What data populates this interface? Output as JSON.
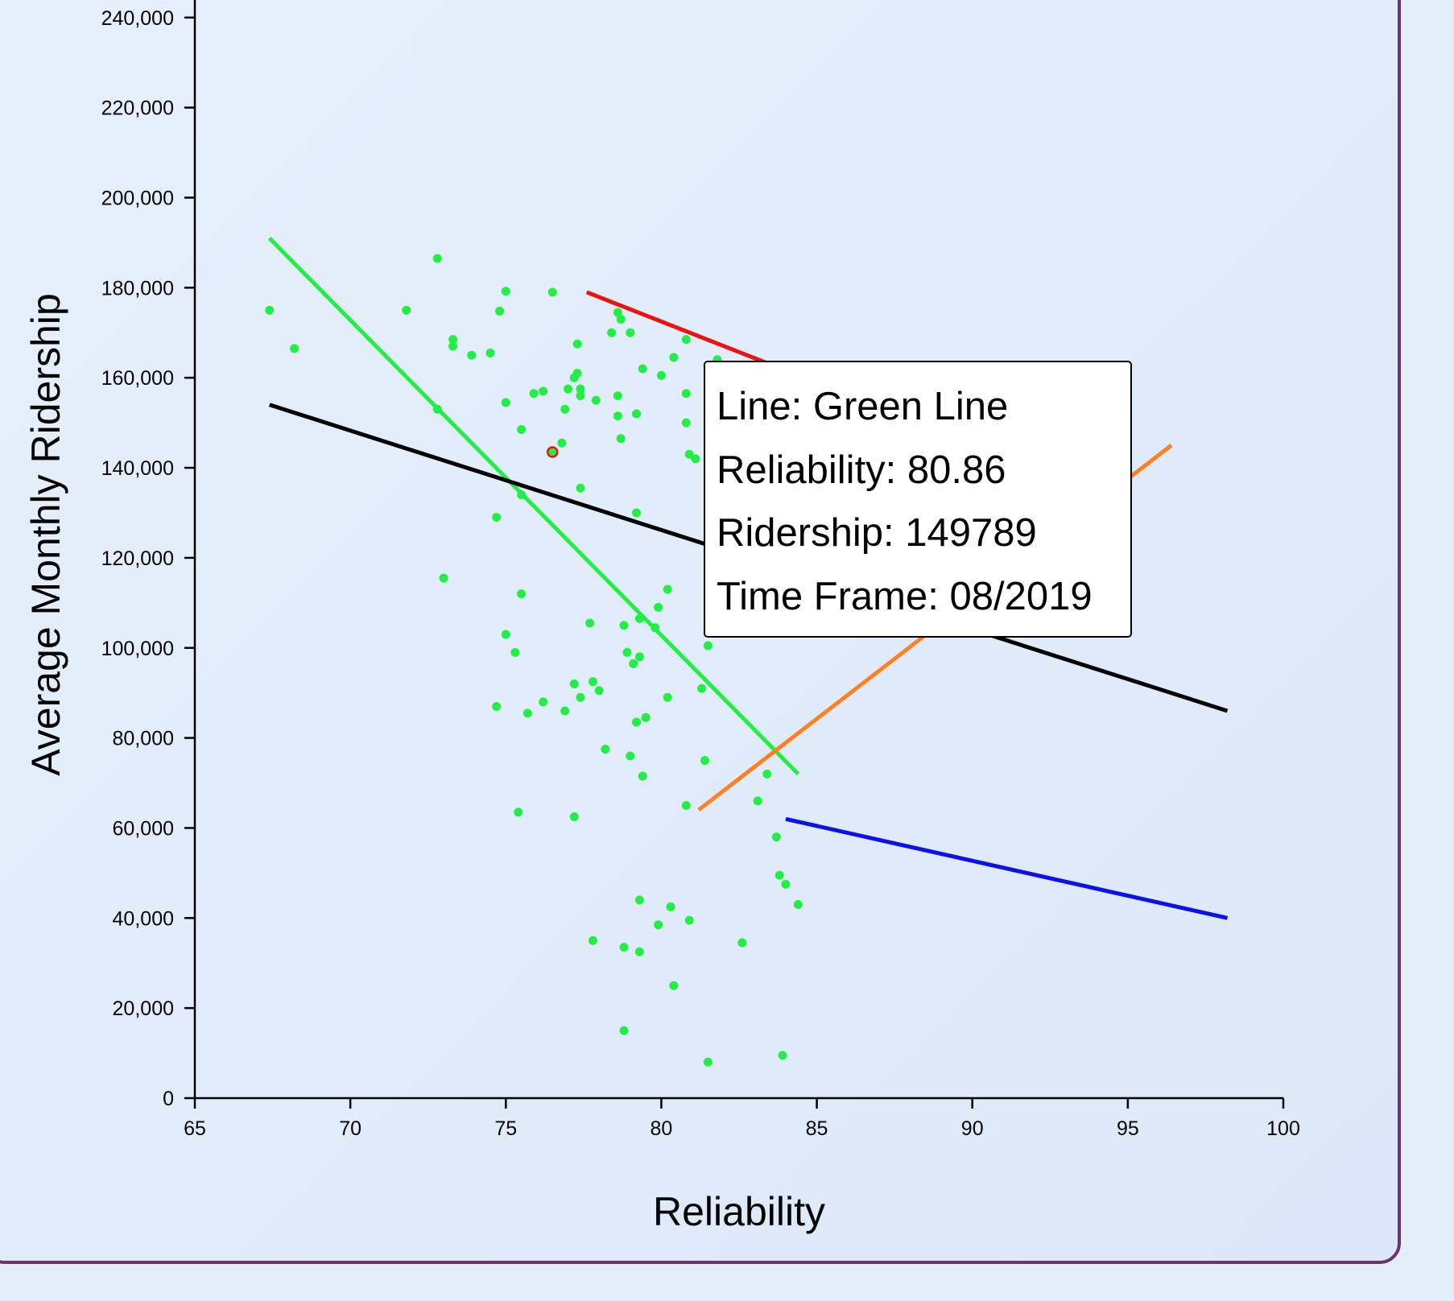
{
  "chart_data": {
    "type": "scatter",
    "title": "",
    "xlabel": "Reliability",
    "ylabel": "Average Monthly Ridership",
    "xlim": [
      65,
      100
    ],
    "ylim": [
      0,
      245000
    ],
    "xticks": [
      65,
      70,
      75,
      80,
      85,
      90,
      95,
      100
    ],
    "yticks": [
      0,
      20000,
      40000,
      60000,
      80000,
      100000,
      120000,
      140000,
      160000,
      180000,
      200000,
      220000,
      240000
    ],
    "grid": false,
    "point_color": "#22ee44",
    "highlight_color": "#ee1111",
    "points": [
      [
        67.4,
        175000
      ],
      [
        68.2,
        166500
      ],
      [
        71.8,
        175000
      ],
      [
        72.8,
        186500
      ],
      [
        72.8,
        153000
      ],
      [
        73.0,
        115500
      ],
      [
        73.3,
        168500
      ],
      [
        73.3,
        167000
      ],
      [
        73.9,
        165000
      ],
      [
        74.5,
        165500
      ],
      [
        74.7,
        87000
      ],
      [
        74.7,
        129000
      ],
      [
        74.8,
        174800
      ],
      [
        75.0,
        179200
      ],
      [
        75.0,
        154500
      ],
      [
        75.0,
        103000
      ],
      [
        75.3,
        99000
      ],
      [
        75.4,
        63500
      ],
      [
        75.5,
        148500
      ],
      [
        75.5,
        134000
      ],
      [
        75.5,
        112000
      ],
      [
        75.7,
        85500
      ],
      [
        75.9,
        156500
      ],
      [
        76.2,
        157000
      ],
      [
        76.2,
        88000
      ],
      [
        76.5,
        179000
      ],
      [
        76.8,
        145500
      ],
      [
        76.9,
        153000
      ],
      [
        76.9,
        86000
      ],
      [
        77.0,
        157500
      ],
      [
        77.2,
        160000
      ],
      [
        77.2,
        92000
      ],
      [
        77.2,
        62500
      ],
      [
        77.3,
        161000
      ],
      [
        77.3,
        167500
      ],
      [
        77.4,
        157500
      ],
      [
        77.4,
        156000
      ],
      [
        77.4,
        89000
      ],
      [
        77.4,
        135500
      ],
      [
        77.7,
        105500
      ],
      [
        77.8,
        92500
      ],
      [
        77.8,
        35000
      ],
      [
        77.9,
        155000
      ],
      [
        78.0,
        90500
      ],
      [
        78.2,
        77500
      ],
      [
        78.4,
        170000
      ],
      [
        78.6,
        174500
      ],
      [
        78.6,
        156000
      ],
      [
        78.6,
        151500
      ],
      [
        78.7,
        173000
      ],
      [
        78.7,
        146500
      ],
      [
        78.8,
        105000
      ],
      [
        78.8,
        33500
      ],
      [
        78.8,
        15000
      ],
      [
        78.9,
        99000
      ],
      [
        79.0,
        170000
      ],
      [
        79.0,
        76000
      ],
      [
        79.1,
        96500
      ],
      [
        79.2,
        152000
      ],
      [
        79.2,
        130000
      ],
      [
        79.2,
        83500
      ],
      [
        79.3,
        106500
      ],
      [
        79.3,
        98000
      ],
      [
        79.3,
        44000
      ],
      [
        79.3,
        32500
      ],
      [
        79.4,
        162000
      ],
      [
        79.4,
        71500
      ],
      [
        79.5,
        84500
      ],
      [
        79.8,
        104500
      ],
      [
        79.9,
        109000
      ],
      [
        79.9,
        38500
      ],
      [
        80.0,
        160500
      ],
      [
        80.2,
        113000
      ],
      [
        80.2,
        89000
      ],
      [
        80.3,
        42500
      ],
      [
        80.4,
        164500
      ],
      [
        80.4,
        25000
      ],
      [
        80.8,
        168500
      ],
      [
        80.8,
        156500
      ],
      [
        80.8,
        150000
      ],
      [
        80.8,
        65000
      ],
      [
        80.9,
        143000
      ],
      [
        80.9,
        39500
      ],
      [
        81.1,
        142000
      ],
      [
        81.3,
        91000
      ],
      [
        81.4,
        75000
      ],
      [
        81.5,
        100500
      ],
      [
        81.5,
        8000
      ],
      [
        81.8,
        164000
      ],
      [
        82.6,
        34500
      ],
      [
        83.1,
        66000
      ],
      [
        83.4,
        72000
      ],
      [
        83.7,
        58000
      ],
      [
        83.8,
        49500
      ],
      [
        83.9,
        9500
      ],
      [
        84.0,
        47500
      ],
      [
        84.4,
        43000
      ]
    ],
    "highlighted_point": [
      76.5,
      143500
    ],
    "trend_lines": [
      {
        "color": "#ee1111",
        "x": [
          77.6,
          84.6
        ],
        "y": [
          179000,
          160000
        ]
      },
      {
        "color": "#22ee44",
        "x": [
          67.4,
          84.4
        ],
        "y": [
          191000,
          72000
        ]
      },
      {
        "color": "#000000",
        "x": [
          67.4,
          98.2
        ],
        "y": [
          154000,
          86000
        ]
      },
      {
        "color": "#ff8020",
        "x": [
          81.2,
          96.4
        ],
        "y": [
          64000,
          145000
        ]
      },
      {
        "color": "#0a10ee",
        "x": [
          84.0,
          98.2
        ],
        "y": [
          62000,
          40000
        ]
      }
    ]
  },
  "tooltip": {
    "line": "Line: Green Line",
    "reliability": "Reliability: 80.86",
    "ridership": "Ridership: 149789",
    "time_frame": "Time Frame: 08/2019"
  }
}
